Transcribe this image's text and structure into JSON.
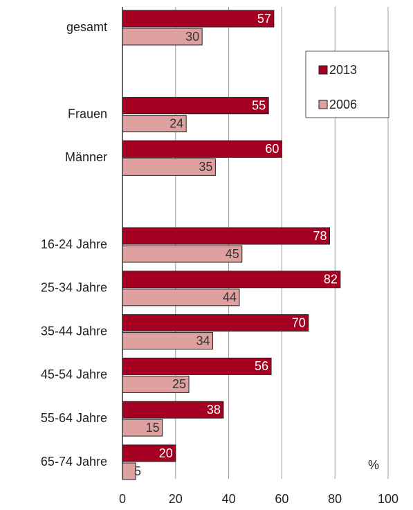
{
  "chart_data": {
    "type": "bar",
    "orientation": "horizontal",
    "categories": [
      "gesamt",
      null,
      "Frauen",
      "Männer",
      null,
      "16-24 Jahre",
      "25-34 Jahre",
      "35-44 Jahre",
      "45-54 Jahre",
      "55-64 Jahre",
      "65-74 Jahre"
    ],
    "series": [
      {
        "name": "2013",
        "color": "#a50021",
        "values": [
          57,
          null,
          55,
          60,
          null,
          78,
          82,
          70,
          56,
          38,
          20
        ]
      },
      {
        "name": "2006",
        "color": "#dfa0a0",
        "values": [
          30,
          null,
          24,
          35,
          null,
          45,
          44,
          34,
          25,
          15,
          5
        ]
      }
    ],
    "xlim": [
      0,
      100
    ],
    "xticks": [
      0,
      20,
      40,
      60,
      80,
      100
    ],
    "grid": true,
    "legend": "top-right",
    "annotations": [
      "%"
    ]
  }
}
